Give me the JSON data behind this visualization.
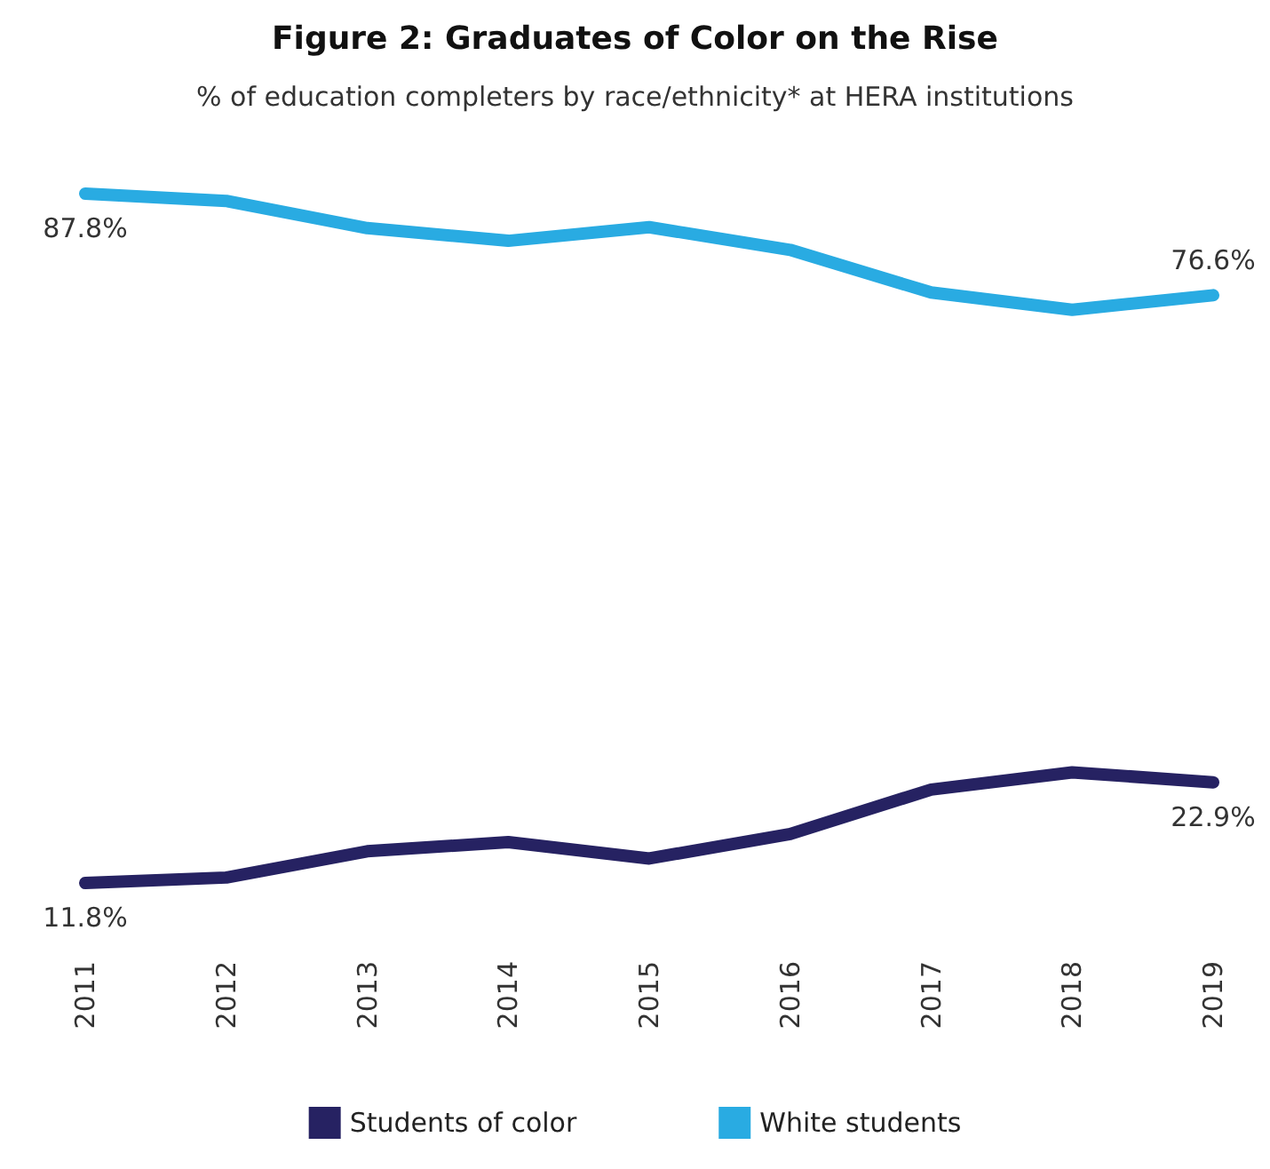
{
  "chart_data": {
    "type": "line",
    "title": "Figure 2: Graduates of Color on the Rise",
    "subtitle": "% of education completers by race/ethnicity* at HERA institutions",
    "categories": [
      "2011",
      "2012",
      "2013",
      "2014",
      "2015",
      "2016",
      "2017",
      "2018",
      "2019"
    ],
    "series": [
      {
        "name": "Students of color",
        "color": "#262262",
        "values": [
          11.8,
          12.4,
          15.3,
          16.3,
          14.5,
          17.2,
          22.1,
          24.0,
          22.9
        ],
        "value_labels": [
          "11.8%",
          null,
          null,
          null,
          null,
          null,
          null,
          null,
          "22.9%"
        ]
      },
      {
        "name": "White students",
        "color": "#29abe2",
        "values": [
          87.8,
          87.0,
          84.0,
          82.6,
          84.1,
          81.6,
          76.9,
          75.0,
          76.6
        ],
        "value_labels": [
          "87.8%",
          null,
          null,
          null,
          null,
          null,
          null,
          null,
          "76.6%"
        ]
      }
    ],
    "legend": "bottom",
    "marker": "none",
    "line_style": "solid",
    "grid": false
  }
}
